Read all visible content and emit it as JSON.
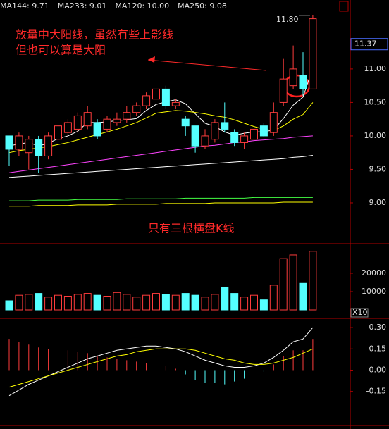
{
  "chart_data": [
    {
      "type": "candlestick",
      "annotations": [
        "放量中大阳线，虽然有些上影线",
        "但也可以算是大阳",
        "只有三根横盘K线"
      ],
      "up_color": "#ff3c3c",
      "down_color": "#54ffff",
      "open": [
        10.0,
        9.8,
        9.75,
        9.95,
        9.7,
        9.95,
        10.05,
        10.1,
        10.15,
        10.2,
        10.1,
        10.2,
        10.25,
        10.35,
        10.45,
        10.55,
        10.7,
        10.45,
        10.25,
        10.15,
        9.85,
        9.95,
        10.2,
        10.05,
        9.9,
        9.95,
        10.15,
        10.05,
        10.5,
        10.75,
        10.9,
        10.7
      ],
      "high": [
        10.0,
        10.05,
        10.0,
        10.0,
        10.05,
        10.2,
        10.25,
        10.35,
        10.45,
        10.25,
        10.3,
        10.35,
        10.45,
        10.5,
        10.65,
        10.75,
        10.75,
        10.55,
        10.3,
        10.15,
        10.1,
        10.25,
        10.5,
        10.1,
        10.05,
        10.15,
        10.2,
        10.5,
        11.15,
        11.35,
        11.25,
        11.8
      ],
      "low": [
        9.55,
        9.7,
        9.5,
        9.45,
        9.65,
        9.9,
        10.0,
        10.05,
        10.1,
        9.95,
        10.05,
        10.15,
        10.2,
        10.3,
        10.4,
        10.45,
        10.4,
        10.4,
        10.0,
        9.75,
        9.8,
        9.9,
        10.05,
        9.85,
        9.8,
        9.9,
        9.98,
        10.0,
        10.45,
        10.7,
        10.6,
        10.7
      ],
      "close": [
        9.8,
        10.0,
        9.95,
        9.7,
        10.0,
        10.15,
        10.2,
        10.3,
        10.35,
        10.0,
        10.25,
        10.25,
        10.35,
        10.45,
        10.6,
        10.7,
        10.45,
        10.5,
        10.15,
        9.85,
        10.0,
        10.2,
        10.1,
        9.9,
        10.0,
        10.1,
        10.0,
        10.35,
        10.85,
        11.0,
        10.7,
        11.75
      ],
      "series": [
        {
          "color": "#ffffff",
          "values": [
            9.85,
            9.88,
            9.9,
            9.85,
            9.89,
            9.96,
            10.0,
            10.07,
            10.2,
            10.2,
            10.21,
            10.23,
            10.24,
            10.26,
            10.38,
            10.47,
            10.51,
            10.54,
            10.48,
            10.33,
            10.19,
            10.14,
            10.06,
            10.01,
            10.04,
            10.06,
            10.06,
            10.09,
            10.26,
            10.46,
            10.58,
            11.02
          ]
        },
        {
          "color": "#ffff00",
          "values": [
            9.75,
            9.78,
            9.8,
            9.82,
            9.84,
            9.87,
            9.9,
            9.94,
            9.98,
            10.02,
            10.06,
            10.1,
            10.15,
            10.2,
            10.27,
            10.34,
            10.36,
            10.38,
            10.37,
            10.35,
            10.33,
            10.3,
            10.28,
            10.24,
            10.19,
            10.14,
            10.1,
            10.08,
            10.15,
            10.25,
            10.32,
            10.5
          ]
        },
        {
          "name": "MA144: 9.71",
          "color": "#ffffff",
          "values": [
            9.38,
            9.39,
            9.4,
            9.41,
            9.42,
            9.43,
            9.44,
            9.45,
            9.46,
            9.47,
            9.48,
            9.49,
            9.5,
            9.51,
            9.52,
            9.53,
            9.54,
            9.55,
            9.56,
            9.57,
            9.58,
            9.59,
            9.6,
            9.61,
            9.62,
            9.63,
            9.64,
            9.65,
            9.66,
            9.68,
            9.69,
            9.71
          ]
        },
        {
          "name": "MA233: 9.01",
          "color": "#ffff00",
          "values": [
            8.95,
            8.95,
            8.95,
            8.96,
            8.96,
            8.96,
            8.96,
            8.97,
            8.97,
            8.97,
            8.97,
            8.98,
            8.98,
            8.98,
            8.98,
            8.98,
            8.99,
            8.99,
            8.99,
            8.99,
            8.99,
            9.0,
            9.0,
            9.0,
            9.0,
            9.0,
            9.0,
            9.0,
            9.01,
            9.01,
            9.01,
            9.01
          ]
        },
        {
          "name": "MA120: 10.00",
          "color": "#ff44ff",
          "values": [
            9.45,
            9.47,
            9.49,
            9.51,
            9.53,
            9.55,
            9.57,
            9.59,
            9.61,
            9.63,
            9.65,
            9.67,
            9.69,
            9.71,
            9.73,
            9.75,
            9.77,
            9.79,
            9.81,
            9.83,
            9.85,
            9.86,
            9.88,
            9.9,
            9.91,
            9.93,
            9.94,
            9.95,
            9.96,
            9.98,
            9.99,
            10.0
          ]
        },
        {
          "name": "MA250: 9.08",
          "color": "#44ff44",
          "values": [
            9.03,
            9.03,
            9.03,
            9.04,
            9.04,
            9.04,
            9.04,
            9.05,
            9.05,
            9.05,
            9.05,
            9.05,
            9.06,
            9.06,
            9.06,
            9.06,
            9.06,
            9.06,
            9.07,
            9.07,
            9.07,
            9.07,
            9.07,
            9.07,
            9.07,
            9.08,
            9.08,
            9.08,
            9.08,
            9.08,
            9.08,
            9.08
          ]
        }
      ],
      "ylim": [
        8.4,
        12.03
      ],
      "yticks": [
        {
          "value": 9,
          "label": "9.00"
        },
        {
          "value": 9.5,
          "label": "9.50"
        },
        {
          "value": 10,
          "label": "10.00"
        },
        {
          "value": 10.5,
          "label": "10.50"
        },
        {
          "value": 11,
          "label": "11.00"
        }
      ],
      "last_price": 11.37,
      "high_label": {
        "value": 11.8,
        "label": "11.80"
      }
    },
    {
      "type": "volume",
      "values": [
        5000,
        8000,
        8500,
        9000,
        7000,
        8000,
        7500,
        8500,
        9000,
        8000,
        7500,
        9500,
        8500,
        7000,
        8000,
        9000,
        8500,
        8000,
        9000,
        8000,
        7000,
        8500,
        12500,
        9000,
        7000,
        8000,
        5500,
        13500,
        28000,
        30000,
        14500,
        32000
      ],
      "ylim": [
        0,
        34600
      ],
      "yticks": [
        10000,
        20000
      ],
      "unit_label": "X10"
    },
    {
      "type": "macd",
      "values": [
        0.22,
        0.2,
        0.18,
        0.16,
        0.15,
        0.14,
        0.14,
        0.13,
        0.12,
        0.1,
        0.09,
        0.08,
        0.07,
        0.06,
        0.05,
        0.05,
        0.03,
        0.01,
        -0.03,
        -0.07,
        -0.09,
        -0.09,
        -0.1,
        -0.08,
        -0.06,
        -0.04,
        -0.01,
        0.04,
        0.1,
        0.14,
        0.14,
        0.22
      ],
      "pos_color": "#ff3c3c",
      "neg_color": "#54ffff",
      "series": [
        {
          "color": "#ffffff",
          "values": [
            -0.18,
            -0.14,
            -0.1,
            -0.07,
            -0.04,
            -0.01,
            0.02,
            0.05,
            0.08,
            0.1,
            0.12,
            0.14,
            0.15,
            0.16,
            0.17,
            0.17,
            0.16,
            0.15,
            0.13,
            0.1,
            0.07,
            0.05,
            0.03,
            0.02,
            0.02,
            0.03,
            0.05,
            0.09,
            0.14,
            0.2,
            0.22,
            0.3
          ]
        },
        {
          "color": "#ffff00",
          "values": [
            -0.12,
            -0.1,
            -0.08,
            -0.06,
            -0.04,
            -0.02,
            0.0,
            0.02,
            0.04,
            0.06,
            0.08,
            0.1,
            0.11,
            0.13,
            0.14,
            0.15,
            0.15,
            0.15,
            0.15,
            0.14,
            0.12,
            0.1,
            0.08,
            0.07,
            0.05,
            0.04,
            0.04,
            0.05,
            0.07,
            0.09,
            0.12,
            0.15
          ]
        }
      ],
      "ylim": [
        -0.37,
        0.35
      ],
      "yticks": [
        {
          "value": -0.15,
          "label": "-0.15"
        },
        {
          "value": 0,
          "label": "0.00"
        },
        {
          "value": 0.15,
          "label": "0.15"
        },
        {
          "value": 0.3,
          "label": "0.30"
        }
      ]
    }
  ]
}
